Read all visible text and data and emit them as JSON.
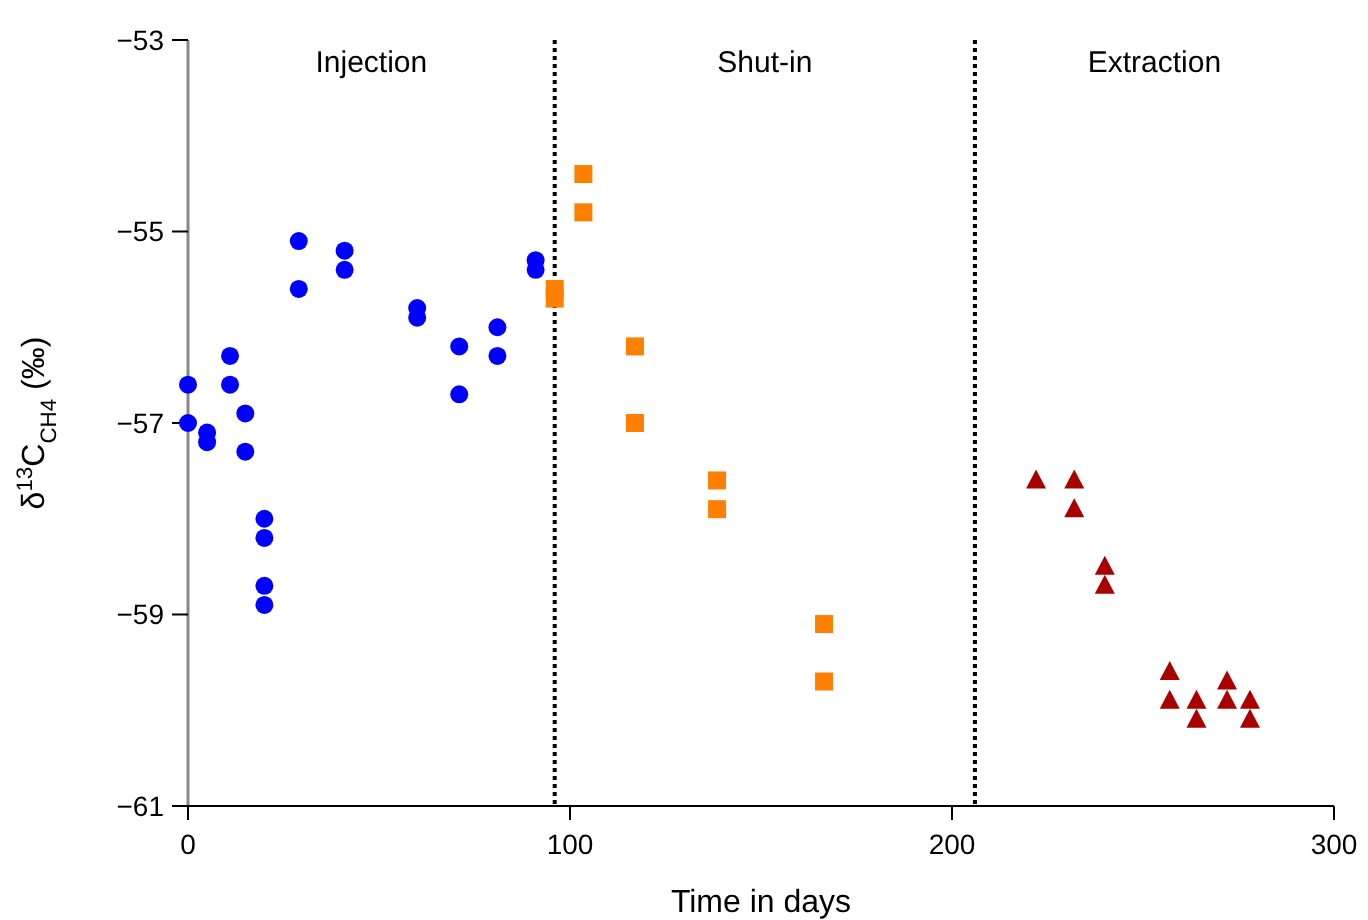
{
  "chart_data": {
    "type": "scatter",
    "xlabel": "Time in days",
    "ylabel": "δ$^{13}$C$_{CH4}$ (‰)",
    "xlim": [
      0,
      300
    ],
    "xticks": [
      0,
      100,
      200,
      300
    ],
    "ylim": [
      -61,
      -53
    ],
    "yticks": [
      {
        "value": -61,
        "label": "−61"
      },
      {
        "value": -59,
        "label": "−59"
      },
      {
        "value": -57,
        "label": "−57"
      },
      {
        "value": -55,
        "label": "−55"
      },
      {
        "value": -53,
        "label": "−53"
      }
    ],
    "grid": false,
    "series": [
      {
        "color": "#0000ff",
        "marker": "circle",
        "x": [
          0,
          0,
          5,
          5,
          11,
          11,
          15,
          15,
          20,
          20,
          20,
          20,
          29,
          29,
          41,
          41,
          60,
          60,
          71,
          71,
          81,
          81,
          91,
          91
        ],
        "values": [
          -56.6,
          -57.0,
          -57.1,
          -57.2,
          -56.3,
          -56.6,
          -56.9,
          -57.3,
          -58.0,
          -58.2,
          -58.7,
          -58.9,
          -55.1,
          -55.6,
          -55.2,
          -55.4,
          -55.8,
          -55.9,
          -56.2,
          -56.7,
          -56.0,
          -56.3,
          -55.3,
          -55.4
        ]
      },
      {
        "color": "#ff8000",
        "marker": "square",
        "x": [
          103.5,
          103.5,
          96,
          96,
          117,
          117,
          138.5,
          138.5,
          166.5,
          166.5
        ],
        "values": [
          -54.4,
          -54.8,
          -55.6,
          -55.7,
          -56.2,
          -57.0,
          -57.6,
          -57.9,
          -59.1,
          -59.7
        ]
      },
      {
        "color": "#aa0000",
        "marker": "triangle",
        "x": [
          222,
          232,
          232,
          240,
          240,
          257,
          257,
          264,
          264,
          272,
          272,
          278,
          278
        ],
        "values": [
          -57.6,
          -57.6,
          -57.9,
          -58.5,
          -58.7,
          -59.6,
          -59.9,
          -59.9,
          -60.1,
          -59.7,
          -59.9,
          -59.9,
          -60.1
        ]
      }
    ],
    "ref_lines": [
      {
        "axis": "x",
        "value": 96,
        "line_style": "dotted",
        "color": "#000000"
      },
      {
        "axis": "x",
        "value": 206,
        "line_style": "dotted",
        "color": "#000000"
      }
    ],
    "annotations": [
      "Injection",
      "Shut-in",
      "Extraction"
    ]
  }
}
